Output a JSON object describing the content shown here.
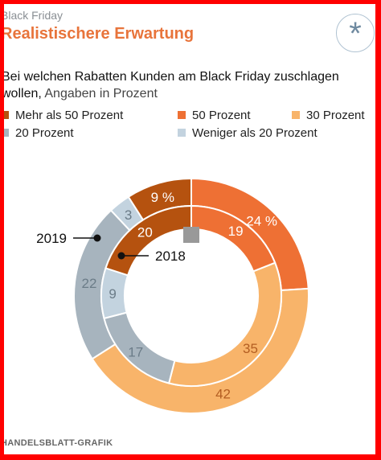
{
  "header": {
    "kicker": "Black Friday",
    "title": "Realistischere Erwartung",
    "badge_icon": "asterisk-icon",
    "badge_symbol": "*"
  },
  "subtitle": {
    "bold": "Bei welchen Rabatten Kunden am Black Friday zuschlagen wollen,",
    "normal": "Angaben in Prozent"
  },
  "legend": [
    {
      "label": "Mehr als 50 Prozent",
      "color": "#b5520f"
    },
    {
      "label": "50 Prozent",
      "color": "#ee7034"
    },
    {
      "label": "30 Prozent",
      "color": "#f8b46a"
    },
    {
      "label": "20 Prozent",
      "color": "#a7b4be"
    },
    {
      "label": "Weniger als 20 Prozent",
      "color": "#c3d3df"
    }
  ],
  "chart_data": {
    "type": "donut",
    "categories": [
      "50 Prozent",
      "30 Prozent",
      "20 Prozent",
      "Weniger als 20 Prozent",
      "Mehr als 50 Prozent"
    ],
    "colors": [
      "#ee7034",
      "#f8b46a",
      "#a7b4be",
      "#c3d3df",
      "#b5520f"
    ],
    "series": [
      {
        "name": "2019",
        "ring": "outer",
        "values": [
          24,
          42,
          22,
          3,
          9
        ],
        "labels": [
          "24 %",
          "42",
          "22",
          "3",
          "9 %"
        ]
      },
      {
        "name": "2018",
        "ring": "inner",
        "values": [
          19,
          35,
          17,
          9,
          20
        ],
        "labels": [
          "19",
          "35",
          "17",
          "9",
          "20"
        ]
      }
    ]
  },
  "footer": "HANDELSBLATT-GRAFIK"
}
